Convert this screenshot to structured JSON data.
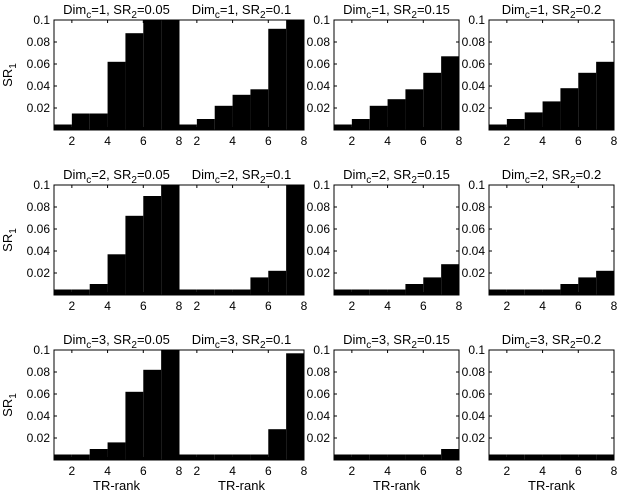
{
  "chart_data": [
    {
      "type": "bar",
      "title_main": "Dim",
      "title_sub1": "c",
      "title_mid": "=1, SR",
      "title_sub2": "2",
      "title_end": "=0.05",
      "ylabel_main": "SR",
      "ylabel_sub": "1",
      "xlabel": "",
      "categories": [
        1,
        2,
        3,
        4,
        5,
        6,
        7,
        8
      ],
      "values": [
        0.005,
        0.015,
        0.015,
        0.062,
        0.088,
        0.1,
        0.1,
        0.1
      ],
      "xticks": [
        "2",
        "4",
        "6",
        "8"
      ],
      "yticks": [
        "0.02",
        "0.04",
        "0.06",
        "0.08",
        "0.1"
      ],
      "xlim": [
        1,
        8
      ],
      "ylim": [
        0,
        0.1
      ]
    },
    {
      "type": "bar",
      "title_main": "Dim",
      "title_sub1": "c",
      "title_mid": "=1, SR",
      "title_sub2": "2",
      "title_end": "=0.1",
      "ylabel_main": "",
      "ylabel_sub": "",
      "xlabel": "",
      "categories": [
        1,
        2,
        3,
        4,
        5,
        6,
        7,
        8
      ],
      "values": [
        0.005,
        0.01,
        0.022,
        0.032,
        0.037,
        0.092,
        0.1,
        0.1
      ],
      "xticks": [
        "2",
        "4",
        "6",
        "8"
      ],
      "yticks": [],
      "xlim": [
        1,
        8
      ],
      "ylim": [
        0,
        0.1
      ]
    },
    {
      "type": "bar",
      "title_main": "Dim",
      "title_sub1": "c",
      "title_mid": "=1, SR",
      "title_sub2": "2",
      "title_end": "=0.15",
      "ylabel_main": "",
      "ylabel_sub": "",
      "xlabel": "",
      "categories": [
        1,
        2,
        3,
        4,
        5,
        6,
        7,
        8
      ],
      "values": [
        0.005,
        0.01,
        0.022,
        0.028,
        0.037,
        0.052,
        0.067,
        0.067
      ],
      "xticks": [
        "2",
        "4",
        "6",
        "8"
      ],
      "yticks": [
        "0.02",
        "0.04",
        "0.06",
        "0.08",
        "0.1"
      ],
      "xlim": [
        1,
        8
      ],
      "ylim": [
        0,
        0.1
      ]
    },
    {
      "type": "bar",
      "title_main": "Dim",
      "title_sub1": "c",
      "title_mid": "=1, SR",
      "title_sub2": "2",
      "title_end": "=0.2",
      "ylabel_main": "",
      "ylabel_sub": "",
      "xlabel": "",
      "categories": [
        1,
        2,
        3,
        4,
        5,
        6,
        7,
        8
      ],
      "values": [
        0.005,
        0.01,
        0.016,
        0.026,
        0.038,
        0.052,
        0.062,
        0.062
      ],
      "xticks": [
        "2",
        "4",
        "6",
        "8"
      ],
      "yticks": [
        "0.02",
        "0.04",
        "0.06",
        "0.08",
        "0.1"
      ],
      "xlim": [
        1,
        8
      ],
      "ylim": [
        0,
        0.1
      ]
    },
    {
      "type": "bar",
      "title_main": "Dim",
      "title_sub1": "c",
      "title_mid": "=2, SR",
      "title_sub2": "2",
      "title_end": "=0.05",
      "ylabel_main": "SR",
      "ylabel_sub": "1",
      "xlabel": "",
      "categories": [
        1,
        2,
        3,
        4,
        5,
        6,
        7,
        8
      ],
      "values": [
        0.005,
        0.005,
        0.01,
        0.037,
        0.072,
        0.09,
        0.1,
        0.1
      ],
      "xticks": [
        "2",
        "4",
        "6",
        "8"
      ],
      "yticks": [
        "0.02",
        "0.04",
        "0.06",
        "0.08",
        "0.1"
      ],
      "xlim": [
        1,
        8
      ],
      "ylim": [
        0,
        0.1
      ]
    },
    {
      "type": "bar",
      "title_main": "Dim",
      "title_sub1": "c",
      "title_mid": "=2, SR",
      "title_sub2": "2",
      "title_end": "=0.1",
      "ylabel_main": "",
      "ylabel_sub": "",
      "xlabel": "",
      "categories": [
        1,
        2,
        3,
        4,
        5,
        6,
        7,
        8
      ],
      "values": [
        0.005,
        0.005,
        0.005,
        0.005,
        0.016,
        0.022,
        0.1,
        0.1
      ],
      "xticks": [
        "2",
        "4",
        "6",
        "8"
      ],
      "yticks": [],
      "xlim": [
        1,
        8
      ],
      "ylim": [
        0,
        0.1
      ]
    },
    {
      "type": "bar",
      "title_main": "Dim",
      "title_sub1": "c",
      "title_mid": "=2, SR",
      "title_sub2": "2",
      "title_end": "=0.15",
      "ylabel_main": "",
      "ylabel_sub": "",
      "xlabel": "",
      "categories": [
        1,
        2,
        3,
        4,
        5,
        6,
        7,
        8
      ],
      "values": [
        0.005,
        0.005,
        0.005,
        0.005,
        0.01,
        0.016,
        0.028,
        0.028
      ],
      "xticks": [
        "2",
        "4",
        "6",
        "8"
      ],
      "yticks": [
        "0.02",
        "0.04",
        "0.06",
        "0.08",
        "0.1"
      ],
      "xlim": [
        1,
        8
      ],
      "ylim": [
        0,
        0.1
      ]
    },
    {
      "type": "bar",
      "title_main": "Dim",
      "title_sub1": "c",
      "title_mid": "=2, SR",
      "title_sub2": "2",
      "title_end": "=0.2",
      "ylabel_main": "",
      "ylabel_sub": "",
      "xlabel": "",
      "categories": [
        1,
        2,
        3,
        4,
        5,
        6,
        7,
        8
      ],
      "values": [
        0.005,
        0.005,
        0.005,
        0.005,
        0.01,
        0.016,
        0.022,
        0.022
      ],
      "xticks": [
        "2",
        "4",
        "6",
        "8"
      ],
      "yticks": [
        "0.02",
        "0.04",
        "0.06",
        "0.08",
        "0.1"
      ],
      "xlim": [
        1,
        8
      ],
      "ylim": [
        0,
        0.1
      ]
    },
    {
      "type": "bar",
      "title_main": "Dim",
      "title_sub1": "c",
      "title_mid": "=3, SR",
      "title_sub2": "2",
      "title_end": "=0.05",
      "ylabel_main": "SR",
      "ylabel_sub": "1",
      "xlabel": "TR-rank",
      "categories": [
        1,
        2,
        3,
        4,
        5,
        6,
        7,
        8
      ],
      "values": [
        0.005,
        0.005,
        0.01,
        0.016,
        0.062,
        0.082,
        0.1,
        0.1
      ],
      "xticks": [
        "2",
        "4",
        "6",
        "8"
      ],
      "yticks": [
        "0.02",
        "0.04",
        "0.06",
        "0.08",
        "0.1"
      ],
      "xlim": [
        1,
        8
      ],
      "ylim": [
        0,
        0.1
      ]
    },
    {
      "type": "bar",
      "title_main": "Dim",
      "title_sub1": "c",
      "title_mid": "=3, SR",
      "title_sub2": "2",
      "title_end": "=0.1",
      "ylabel_main": "",
      "ylabel_sub": "",
      "xlabel": "TR-rank",
      "categories": [
        1,
        2,
        3,
        4,
        5,
        6,
        7,
        8
      ],
      "values": [
        0.005,
        0.005,
        0.005,
        0.005,
        0.005,
        0.028,
        0.097,
        0.097
      ],
      "xticks": [
        "2",
        "4",
        "6",
        "8"
      ],
      "yticks": [],
      "xlim": [
        1,
        8
      ],
      "ylim": [
        0,
        0.1
      ]
    },
    {
      "type": "bar",
      "title_main": "Dim",
      "title_sub1": "c",
      "title_mid": "=3, SR",
      "title_sub2": "2",
      "title_end": "=0.15",
      "ylabel_main": "",
      "ylabel_sub": "",
      "xlabel": "TR-rank",
      "categories": [
        1,
        2,
        3,
        4,
        5,
        6,
        7,
        8
      ],
      "values": [
        0.005,
        0.005,
        0.005,
        0.005,
        0.005,
        0.005,
        0.01,
        0.01
      ],
      "xticks": [
        "2",
        "4",
        "6",
        "8"
      ],
      "yticks": [
        "0.02",
        "0.04",
        "0.06",
        "0.08",
        "0.1"
      ],
      "xlim": [
        1,
        8
      ],
      "ylim": [
        0,
        0.1
      ]
    },
    {
      "type": "bar",
      "title_main": "Dim",
      "title_sub1": "c",
      "title_mid": "=3, SR",
      "title_sub2": "2",
      "title_end": "=0.2",
      "ylabel_main": "",
      "ylabel_sub": "",
      "xlabel": "TR-rank",
      "categories": [
        1,
        2,
        3,
        4,
        5,
        6,
        7,
        8
      ],
      "values": [
        0.005,
        0.005,
        0.005,
        0.005,
        0.005,
        0.005,
        0.005,
        0.005
      ],
      "xticks": [
        "2",
        "4",
        "6",
        "8"
      ],
      "yticks": [
        "0.02",
        "0.04",
        "0.06",
        "0.08",
        "0.1"
      ],
      "xlim": [
        1,
        8
      ],
      "ylim": [
        0,
        0.1
      ]
    }
  ]
}
